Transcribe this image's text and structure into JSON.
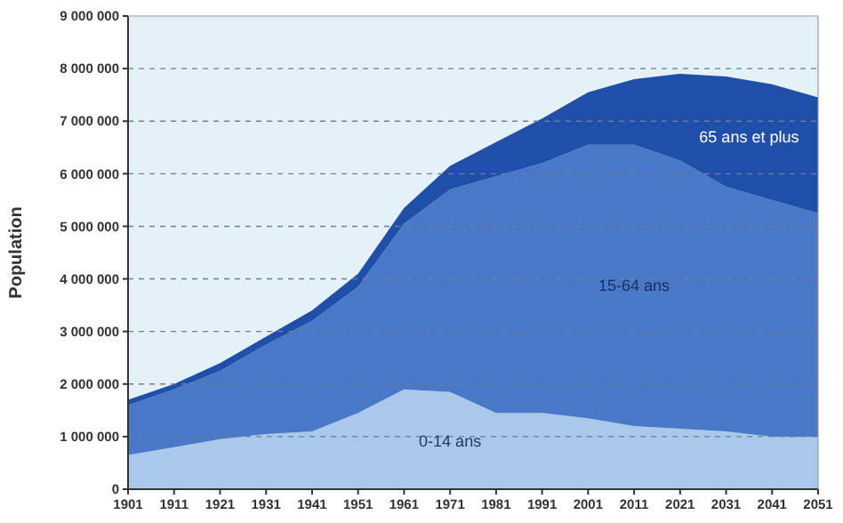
{
  "chart_data": {
    "type": "area",
    "stacked": true,
    "ylabel": "Population",
    "x": [
      1901,
      1911,
      1921,
      1931,
      1941,
      1951,
      1961,
      1971,
      1981,
      1991,
      2001,
      2011,
      2021,
      2031,
      2041,
      2051
    ],
    "series": [
      {
        "name": "0-14 ans",
        "color": "#a9c8ea",
        "values": [
          650000,
          800000,
          950000,
          1050000,
          1100000,
          1450000,
          1900000,
          1850000,
          1450000,
          1450000,
          1350000,
          1200000,
          1150000,
          1100000,
          1000000,
          1000000
        ]
      },
      {
        "name": "15-64 ans",
        "color": "#4a78c8",
        "values": [
          950000,
          1100000,
          1300000,
          1700000,
          2100000,
          2400000,
          3150000,
          3850000,
          4500000,
          4750000,
          5200000,
          5350000,
          5100000,
          4650000,
          4500000,
          4250000
        ]
      },
      {
        "name": "65 ans et plus",
        "color": "#1f4fa8",
        "values": [
          100000,
          100000,
          150000,
          150000,
          200000,
          250000,
          300000,
          450000,
          650000,
          850000,
          1000000,
          1250000,
          1650000,
          2100000,
          2200000,
          2200000
        ]
      }
    ],
    "xlim": [
      1901,
      2051
    ],
    "xticks": [
      1901,
      1911,
      1921,
      1931,
      1941,
      1951,
      1961,
      1971,
      1981,
      1991,
      2001,
      2011,
      2021,
      2031,
      2041,
      2051
    ],
    "ylim": [
      0,
      9000000
    ],
    "yticks": [
      {
        "value": 0,
        "label": "0"
      },
      {
        "value": 1000000,
        "label": "1 000 000"
      },
      {
        "value": 2000000,
        "label": "2 000 000"
      },
      {
        "value": 3000000,
        "label": "3 000 000"
      },
      {
        "value": 4000000,
        "label": "4 000 000"
      },
      {
        "value": 5000000,
        "label": "5 000 000"
      },
      {
        "value": 6000000,
        "label": "6 000 000"
      },
      {
        "value": 7000000,
        "label": "7 000 000"
      },
      {
        "value": 8000000,
        "label": "8 000 000"
      },
      {
        "value": 9000000,
        "label": "9 000 000"
      }
    ],
    "grid": "y"
  }
}
